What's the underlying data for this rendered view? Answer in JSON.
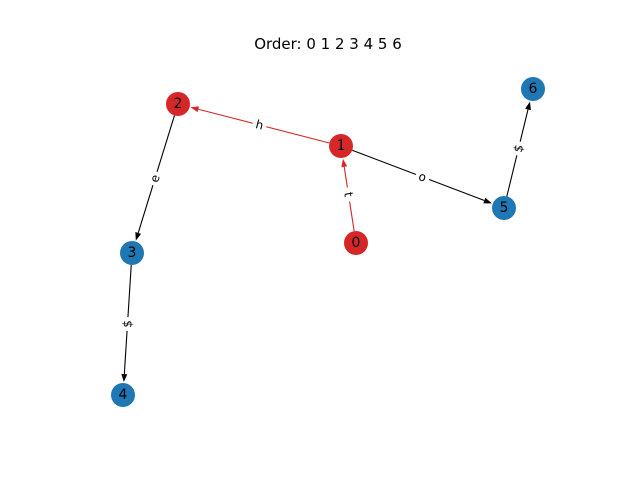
{
  "title": "Order: 0 1 2 3 4 5 6",
  "colors": {
    "highlight_node": "#d62728",
    "default_node": "#1f77b4",
    "highlight_edge": "#d62728",
    "default_edge": "#000000"
  },
  "nodes": [
    {
      "id": "0",
      "label": "0",
      "highlighted": true
    },
    {
      "id": "1",
      "label": "1",
      "highlighted": true
    },
    {
      "id": "2",
      "label": "2",
      "highlighted": true
    },
    {
      "id": "3",
      "label": "3",
      "highlighted": false
    },
    {
      "id": "4",
      "label": "4",
      "highlighted": false
    },
    {
      "id": "5",
      "label": "5",
      "highlighted": false
    },
    {
      "id": "6",
      "label": "6",
      "highlighted": false
    }
  ],
  "edges": [
    {
      "from": "0",
      "to": "1",
      "label": "t",
      "highlighted": true
    },
    {
      "from": "1",
      "to": "2",
      "label": "h",
      "highlighted": true
    },
    {
      "from": "1",
      "to": "5",
      "label": "o",
      "highlighted": false
    },
    {
      "from": "2",
      "to": "3",
      "label": "e",
      "highlighted": false
    },
    {
      "from": "3",
      "to": "4",
      "label": "$",
      "highlighted": false
    },
    {
      "from": "5",
      "to": "6",
      "label": "$",
      "highlighted": false
    }
  ]
}
